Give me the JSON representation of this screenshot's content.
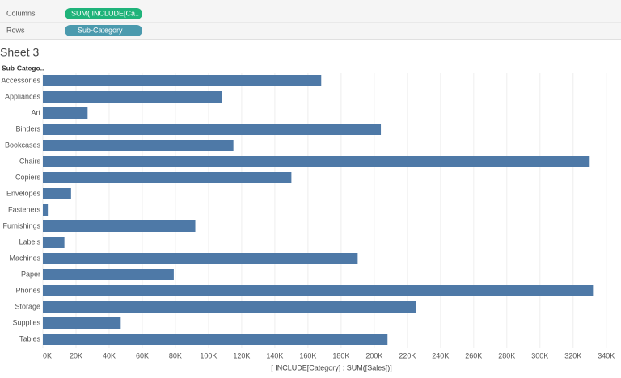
{
  "ui": {
    "columns_label": "Columns",
    "columns_pill": "SUM( INCLUDE[Ca..",
    "rows_label": "Rows",
    "rows_pill": "Sub-Category",
    "sheet_title": "Sheet 3",
    "row_header": "Sub-Catego.."
  },
  "chart_data": {
    "type": "bar",
    "orientation": "horizontal",
    "x_label": "[ INCLUDE[Category] : SUM([Sales])]",
    "categories": [
      "Accessories",
      "Appliances",
      "Art",
      "Binders",
      "Bookcases",
      "Chairs",
      "Copiers",
      "Envelopes",
      "Fasteners",
      "Furnishings",
      "Labels",
      "Machines",
      "Paper",
      "Phones",
      "Storage",
      "Supplies",
      "Tables"
    ],
    "values": [
      168000,
      108000,
      27000,
      204000,
      115000,
      330000,
      150000,
      17000,
      3000,
      92000,
      13000,
      190000,
      79000,
      332000,
      225000,
      47000,
      208000
    ],
    "color": "#4e79a7",
    "xlim": [
      0,
      345000
    ],
    "xticks": [
      {
        "value": 0,
        "label": "0K"
      },
      {
        "value": 20000,
        "label": "20K"
      },
      {
        "value": 40000,
        "label": "40K"
      },
      {
        "value": 60000,
        "label": "60K"
      },
      {
        "value": 80000,
        "label": "80K"
      },
      {
        "value": 100000,
        "label": "100K"
      },
      {
        "value": 120000,
        "label": "120K"
      },
      {
        "value": 140000,
        "label": "140K"
      },
      {
        "value": 160000,
        "label": "160K"
      },
      {
        "value": 180000,
        "label": "180K"
      },
      {
        "value": 200000,
        "label": "200K"
      },
      {
        "value": 220000,
        "label": "220K"
      },
      {
        "value": 240000,
        "label": "240K"
      },
      {
        "value": 260000,
        "label": "260K"
      },
      {
        "value": 280000,
        "label": "280K"
      },
      {
        "value": 300000,
        "label": "300K"
      },
      {
        "value": 320000,
        "label": "320K"
      },
      {
        "value": 340000,
        "label": "340K"
      }
    ],
    "grid": true
  }
}
